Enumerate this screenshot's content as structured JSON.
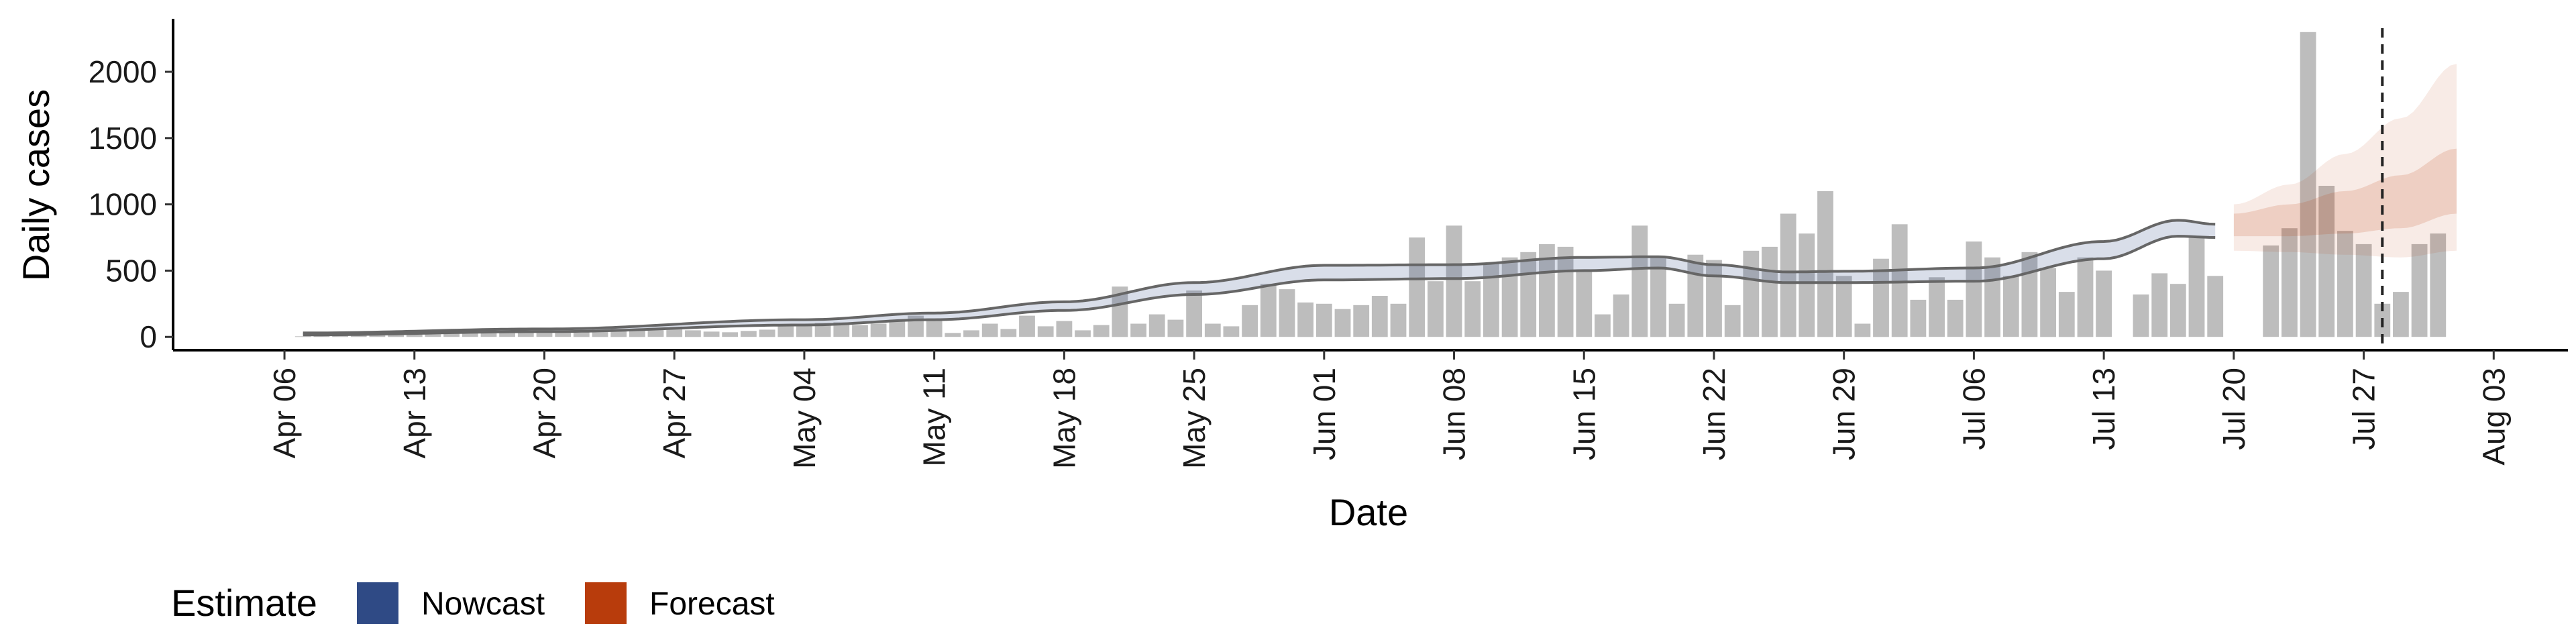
{
  "chart_data": {
    "type": "bar",
    "xlabel": "Date",
    "ylabel": "Daily cases",
    "x_ticks": [
      "Apr 06",
      "Apr 13",
      "Apr 20",
      "Apr 27",
      "May 04",
      "May 11",
      "May 18",
      "May 25",
      "Jun 01",
      "Jun 08",
      "Jun 15",
      "Jun 22",
      "Jun 29",
      "Jul 06",
      "Jul 13",
      "Jul 20",
      "Jul 27",
      "Aug 03"
    ],
    "y_ticks": [
      0,
      500,
      1000,
      1500,
      2000
    ],
    "ylim": [
      -100,
      2400
    ],
    "xlim": [
      "2020-03-31",
      "2020-08-07"
    ],
    "grid": false,
    "colors": {
      "bars": "#bdbdbd",
      "nowcast": "#2f4a85",
      "forecast": "#b83c0c",
      "reference_line": "#222222"
    },
    "bar_start_date": "2020-04-07",
    "observed_cases": [
      5,
      8,
      10,
      12,
      15,
      18,
      20,
      25,
      28,
      30,
      35,
      38,
      40,
      42,
      45,
      50,
      55,
      60,
      58,
      65,
      60,
      50,
      40,
      35,
      45,
      55,
      90,
      100,
      105,
      110,
      90,
      100,
      130,
      160,
      140,
      30,
      50,
      100,
      60,
      160,
      80,
      120,
      50,
      90,
      380,
      100,
      170,
      130,
      350,
      100,
      80,
      240,
      400,
      360,
      260,
      250,
      210,
      240,
      310,
      250,
      750,
      420,
      840,
      420,
      560,
      600,
      640,
      700,
      680,
      500,
      170,
      320,
      840,
      600,
      250,
      620,
      580,
      240,
      650,
      680,
      930,
      780,
      1100,
      460,
      100,
      590,
      850,
      280,
      450,
      280,
      720,
      600,
      460,
      640,
      520,
      340,
      600,
      500,
      0,
      320,
      480,
      400,
      750,
      460,
      null,
      null,
      690,
      820,
      2300,
      1140,
      800,
      700,
      250,
      340,
      700,
      780
    ],
    "nowcast": {
      "name": "Nowcast",
      "start_date": "2020-04-07",
      "end_date": "2020-07-19",
      "knots": [
        {
          "date": "2020-04-07",
          "lower": 15,
          "median": 22,
          "upper": 30
        },
        {
          "date": "2020-04-20",
          "lower": 40,
          "median": 50,
          "upper": 60
        },
        {
          "date": "2020-05-04",
          "lower": 90,
          "median": 110,
          "upper": 130
        },
        {
          "date": "2020-05-11",
          "lower": 130,
          "median": 155,
          "upper": 180
        },
        {
          "date": "2020-05-18",
          "lower": 200,
          "median": 230,
          "upper": 265
        },
        {
          "date": "2020-05-25",
          "lower": 320,
          "median": 360,
          "upper": 410
        },
        {
          "date": "2020-06-01",
          "lower": 430,
          "median": 480,
          "upper": 540
        },
        {
          "date": "2020-06-08",
          "lower": 440,
          "median": 490,
          "upper": 545
        },
        {
          "date": "2020-06-15",
          "lower": 500,
          "median": 550,
          "upper": 600
        },
        {
          "date": "2020-06-19",
          "lower": 520,
          "median": 560,
          "upper": 605
        },
        {
          "date": "2020-06-22",
          "lower": 460,
          "median": 500,
          "upper": 545
        },
        {
          "date": "2020-06-26",
          "lower": 410,
          "median": 450,
          "upper": 490
        },
        {
          "date": "2020-06-29",
          "lower": 410,
          "median": 455,
          "upper": 495
        },
        {
          "date": "2020-07-06",
          "lower": 420,
          "median": 470,
          "upper": 520
        },
        {
          "date": "2020-07-13",
          "lower": 590,
          "median": 650,
          "upper": 720
        },
        {
          "date": "2020-07-17",
          "lower": 760,
          "median": 820,
          "upper": 880
        },
        {
          "date": "2020-07-19",
          "lower": 750,
          "median": 800,
          "upper": 850
        }
      ]
    },
    "forecast": {
      "name": "Forecast",
      "start_date": "2020-07-20",
      "end_date": "2020-08-01",
      "knots": [
        {
          "date": "2020-07-20",
          "lower90": 650,
          "lower50": 760,
          "median": 850,
          "upper50": 930,
          "upper90": 1000
        },
        {
          "date": "2020-07-23",
          "lower90": 640,
          "lower50": 760,
          "median": 880,
          "upper50": 1000,
          "upper90": 1150
        },
        {
          "date": "2020-07-26",
          "lower90": 620,
          "lower50": 780,
          "median": 920,
          "upper50": 1100,
          "upper90": 1380
        },
        {
          "date": "2020-07-29",
          "lower90": 600,
          "lower50": 820,
          "median": 980,
          "upper50": 1220,
          "upper90": 1650
        },
        {
          "date": "2020-08-01",
          "lower90": 650,
          "lower50": 930,
          "median": 1100,
          "upper50": 1420,
          "upper90": 2060
        }
      ]
    },
    "reference_date": "2020-07-28",
    "legend": {
      "title": "Estimate",
      "placement": "bottom-left",
      "entries": [
        {
          "label": "Nowcast",
          "color": "#2f4a85"
        },
        {
          "label": "Forecast",
          "color": "#b83c0c"
        }
      ]
    }
  }
}
